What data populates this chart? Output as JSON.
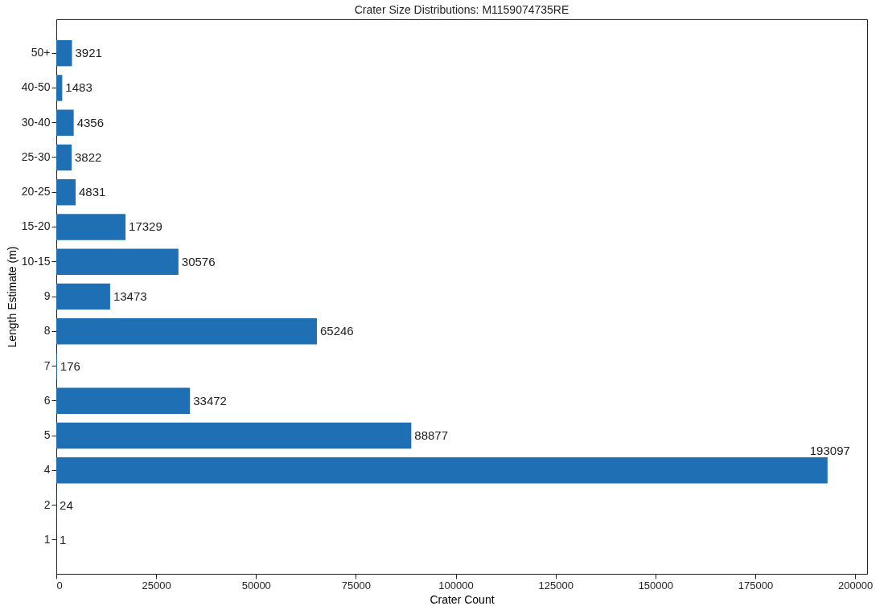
{
  "chart_data": {
    "type": "bar",
    "orientation": "horizontal",
    "title": "Crater Size Distributions: M1159074735RE",
    "xlabel": "Crater Count",
    "ylabel": "Length Estimate (m)",
    "categories": [
      "50+",
      "40-50",
      "30-40",
      "25-30",
      "20-25",
      "15-20",
      "10-15",
      "9",
      "8",
      "7",
      "6",
      "5",
      "4",
      "2",
      "1"
    ],
    "values": [
      3921,
      1483,
      4356,
      3822,
      4831,
      17329,
      30576,
      13473,
      65246,
      176,
      33472,
      88877,
      193097,
      24,
      1
    ],
    "color": "#1f6fb4",
    "xlim": [
      0,
      203000
    ],
    "xticks": [
      0,
      25000,
      50000,
      75000,
      100000,
      125000,
      150000,
      175000,
      200000
    ],
    "data_labels": true
  }
}
